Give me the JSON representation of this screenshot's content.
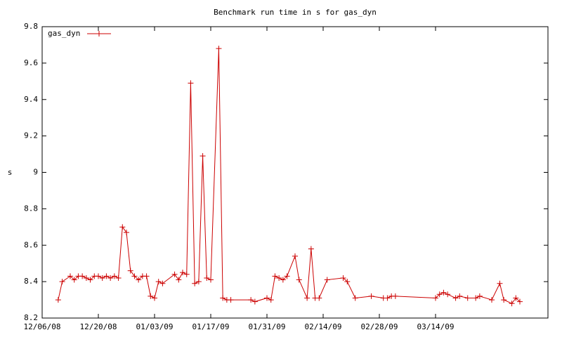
{
  "chart_data": {
    "type": "line",
    "title": "Benchmark run time in s for gas_dyn",
    "y_label": "s",
    "x": [
      "12/10/08",
      "12/11/08",
      "12/13/08",
      "12/14/08",
      "12/15/08",
      "12/16/08",
      "12/17/08",
      "12/18/08",
      "12/19/08",
      "12/20/08",
      "12/21/08",
      "12/22/08",
      "12/23/08",
      "12/24/08",
      "12/25/08",
      "12/26/08",
      "12/27/08",
      "12/28/08",
      "12/29/08",
      "12/30/08",
      "12/31/08",
      "01/01/09",
      "01/02/09",
      "01/03/09",
      "01/04/09",
      "01/05/09",
      "01/08/09",
      "01/09/09",
      "01/10/09",
      "01/11/09",
      "01/12/09",
      "01/13/09",
      "01/14/09",
      "01/15/09",
      "01/16/09",
      "01/17/09",
      "01/19/09",
      "01/20/09",
      "01/21/09",
      "01/22/09",
      "01/27/09",
      "01/28/09",
      "01/31/09",
      "02/01/09",
      "02/02/09",
      "02/03/09",
      "02/04/09",
      "02/05/09",
      "02/07/09",
      "02/08/09",
      "02/10/09",
      "02/11/09",
      "02/12/09",
      "02/13/09",
      "02/15/09",
      "02/19/09",
      "02/20/09",
      "02/22/09",
      "02/26/09",
      "03/01/09",
      "03/02/09",
      "03/03/09",
      "03/04/09",
      "03/14/09",
      "03/15/09",
      "03/16/09",
      "03/17/09",
      "03/19/09",
      "03/20/09",
      "03/22/09",
      "03/24/09",
      "03/25/09",
      "03/28/09",
      "03/30/09",
      "03/31/09",
      "04/02/09",
      "04/03/09",
      "04/04/09"
    ],
    "series": [
      {
        "name": "gas_dyn",
        "color": "#cc0000",
        "values": [
          8.3,
          8.4,
          8.43,
          8.41,
          8.43,
          8.43,
          8.42,
          8.41,
          8.43,
          8.43,
          8.42,
          8.43,
          8.42,
          8.43,
          8.42,
          8.7,
          8.67,
          8.46,
          8.43,
          8.41,
          8.43,
          8.43,
          8.32,
          8.31,
          8.4,
          8.39,
          8.44,
          8.41,
          8.45,
          8.44,
          9.49,
          8.39,
          8.4,
          9.09,
          8.42,
          8.41,
          9.68,
          8.31,
          8.3,
          8.3,
          8.3,
          8.29,
          8.31,
          8.3,
          8.43,
          8.42,
          8.41,
          8.43,
          8.54,
          8.41,
          8.31,
          8.58,
          8.31,
          8.31,
          8.41,
          8.42,
          8.4,
          8.31,
          8.32,
          8.31,
          8.31,
          8.32,
          8.32,
          8.31,
          8.33,
          8.34,
          8.33,
          8.31,
          8.32,
          8.31,
          8.31,
          8.32,
          8.3,
          8.39,
          8.3,
          8.28,
          8.31,
          8.29
        ]
      }
    ],
    "xlim": [
      "12/06/08",
      "04/11/09"
    ],
    "xticks": [
      "12/06/08",
      "12/20/08",
      "01/03/09",
      "01/17/09",
      "01/31/09",
      "02/14/09",
      "02/28/09",
      "03/14/09"
    ],
    "ylim": [
      8.2,
      9.8
    ],
    "yticks": [
      8.2,
      8.4,
      8.6,
      8.8,
      9,
      9.2,
      9.4,
      9.6,
      9.8
    ],
    "legend": "top-left"
  }
}
